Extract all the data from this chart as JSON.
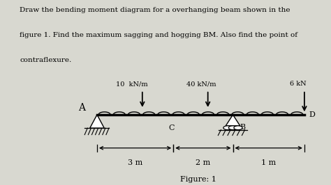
{
  "title_line1": "Draw the bending moment diagram for a overhanging beam shown in the",
  "title_line2": "figure 1. Find the maximum sagging and hogging BM. Also find the point of",
  "title_line3": "contraflexure.",
  "figure_label": "Figure: 1",
  "bg_color": "#c8c8c0",
  "outer_bg": "#e8e8e0",
  "load1_label": "10  kN/m",
  "load2_label": "40 kN/m",
  "point_load_label": "6 kN",
  "label_A": "A",
  "label_C": "C",
  "label_B": "B",
  "label_D": "D",
  "dim1": "3 m",
  "dim2": "2 m",
  "dim3": "1 m",
  "n_bumps": 14,
  "bump_r": 0.025
}
